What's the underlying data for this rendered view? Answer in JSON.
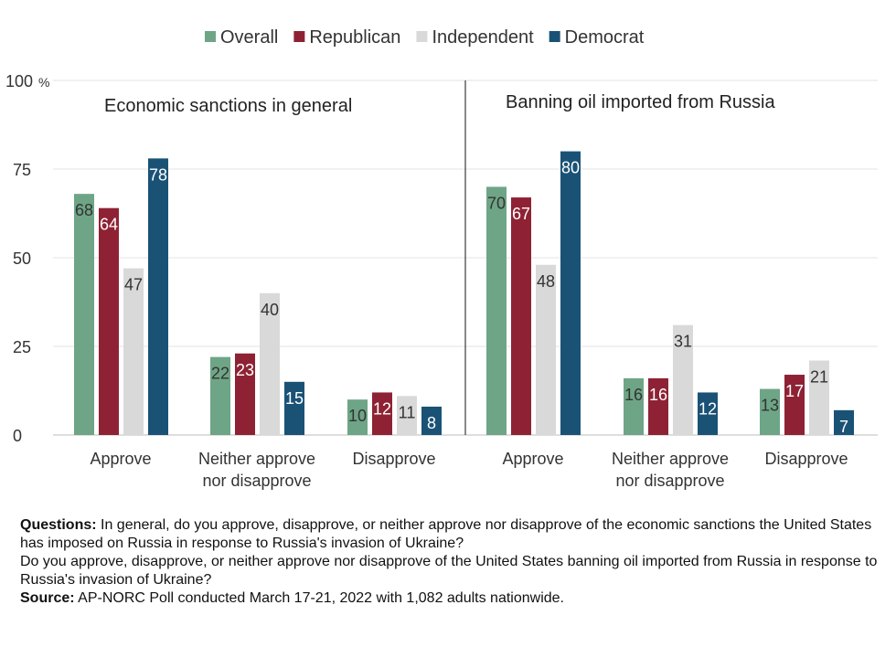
{
  "chart_data": {
    "type": "bar",
    "legend_position": "top",
    "ylim": [
      0,
      100
    ],
    "y_ticks": [
      {
        "value": 0,
        "label": "0"
      },
      {
        "value": 25,
        "label": "25"
      },
      {
        "value": 50,
        "label": "50"
      },
      {
        "value": 75,
        "label": "75"
      },
      {
        "value": 100,
        "label": "100"
      }
    ],
    "y_unit": "%",
    "grid": true,
    "series": [
      {
        "name": "Overall",
        "color": "#6ea586"
      },
      {
        "name": "Republican",
        "color": "#8e2234"
      },
      {
        "name": "Independent",
        "color": "#d9d9d9"
      },
      {
        "name": "Democrat",
        "color": "#1a5276"
      }
    ],
    "panels": [
      {
        "title": "Economic sanctions in general",
        "groups": [
          {
            "lines": [
              "Approve"
            ],
            "values": [
              68,
              64,
              47,
              78
            ]
          },
          {
            "lines": [
              "Neither approve",
              "nor disapprove"
            ],
            "values": [
              22,
              23,
              40,
              15
            ]
          },
          {
            "lines": [
              "Disapprove"
            ],
            "values": [
              10,
              12,
              11,
              8
            ]
          }
        ]
      },
      {
        "title": "Banning oil imported from Russia",
        "groups": [
          {
            "lines": [
              "Approve"
            ],
            "values": [
              70,
              67,
              48,
              80
            ]
          },
          {
            "lines": [
              "Neither approve",
              "nor disapprove"
            ],
            "values": [
              16,
              16,
              31,
              12
            ]
          },
          {
            "lines": [
              "Disapprove"
            ],
            "values": [
              13,
              17,
              21,
              7
            ]
          }
        ]
      }
    ]
  },
  "notes": {
    "questions_label": "Questions:",
    "question1": "In general, do you approve, disapprove, or neither approve nor disapprove of the economic sanctions the United States has imposed on Russia in response to Russia's invasion of Ukraine?",
    "question2": "Do you approve, disapprove, or neither approve nor disapprove of the United States banning oil imported from Russia in response to Russia's invasion of Ukraine?",
    "source_label": "Source:",
    "source": "AP-NORC Poll conducted March 17-21, 2022 with 1,082 adults nationwide."
  }
}
